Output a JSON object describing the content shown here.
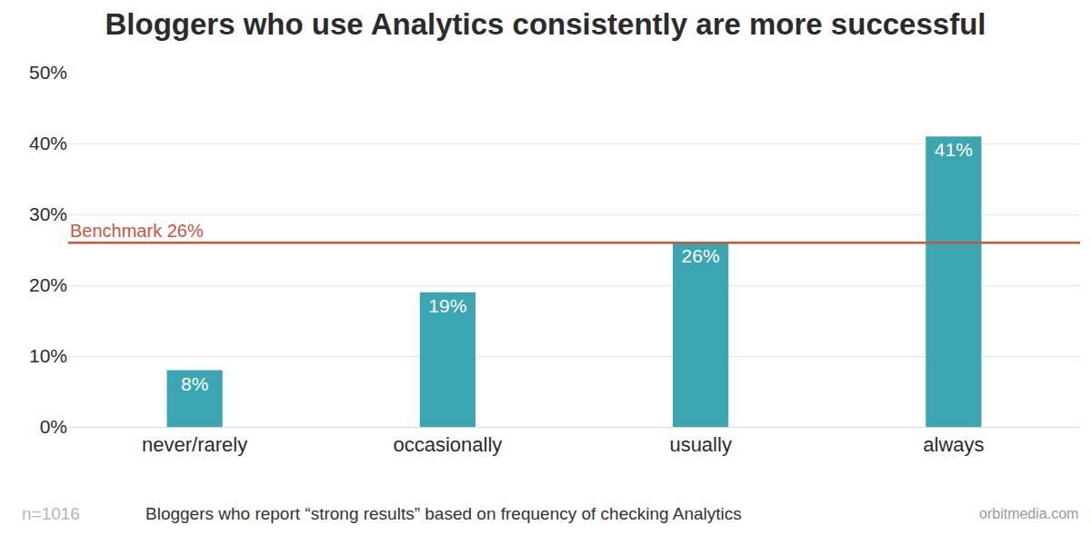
{
  "chart_data": {
    "type": "bar",
    "title": "Bloggers who use Analytics consistently are more successful",
    "categories": [
      "never/rarely",
      "occasionally",
      "usually",
      "always"
    ],
    "values": [
      8,
      19,
      26,
      41
    ],
    "value_labels": [
      "8%",
      "19%",
      "26%",
      "41%"
    ],
    "data_labels": true,
    "color": "#3ba5b2",
    "ylim": [
      0,
      50
    ],
    "yticks": [
      {
        "value": 0,
        "label": "0%"
      },
      {
        "value": 10,
        "label": "10%"
      },
      {
        "value": 20,
        "label": "20%"
      },
      {
        "value": 30,
        "label": "30%"
      },
      {
        "value": 40,
        "label": "40%"
      },
      {
        "value": 50,
        "label": "50%"
      }
    ],
    "grid": true,
    "benchmark": {
      "value": 26,
      "label": "Benchmark 26%",
      "color": "#c9553e"
    },
    "xlabel": "Bloggers who report “strong results” based on frequency of checking Analytics",
    "note": "n=1016",
    "source": "orbitmedia.com"
  }
}
